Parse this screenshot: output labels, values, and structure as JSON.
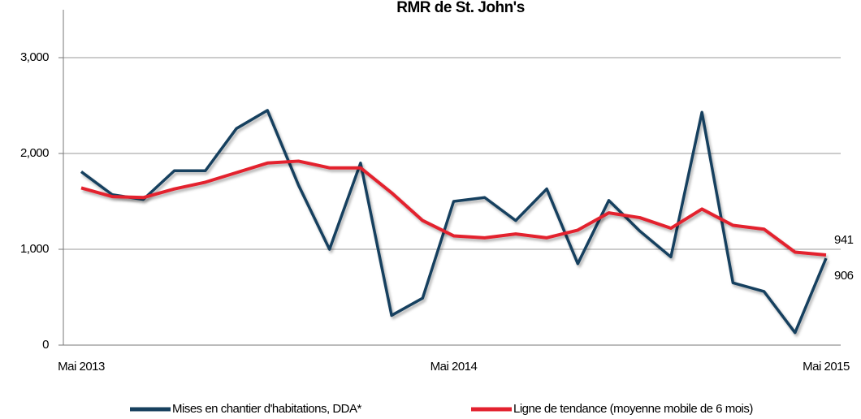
{
  "chart_data": {
    "type": "line",
    "title": "RMR de St. John's",
    "categories": [
      "Mai 2013",
      null,
      null,
      null,
      null,
      null,
      null,
      null,
      null,
      null,
      null,
      null,
      "Mai 2014",
      null,
      null,
      null,
      null,
      null,
      null,
      null,
      null,
      null,
      null,
      null,
      "Mai 2015"
    ],
    "series": [
      {
        "name": "Mises en chantier d'habitations, DDA*",
        "color": "#17405e",
        "values": [
          1810,
          1570,
          1520,
          1820,
          1820,
          2260,
          2450,
          1670,
          1000,
          1900,
          310,
          490,
          1500,
          1540,
          1300,
          1630,
          850,
          1510,
          1190,
          920,
          2430,
          650,
          560,
          130,
          906
        ]
      },
      {
        "name": "Ligne de tendance (moyenne mobile de 6 mois)",
        "color": "#e3212f",
        "values": [
          1640,
          1550,
          1540,
          1630,
          1700,
          1800,
          1900,
          1920,
          1850,
          1850,
          1590,
          1300,
          1140,
          1120,
          1160,
          1120,
          1200,
          1380,
          1330,
          1220,
          1420,
          1250,
          1210,
          970,
          941
        ]
      }
    ],
    "ylim": [
      0,
      3500
    ],
    "yticks": [
      0,
      {
        "value": 1000,
        "label": "1,000"
      },
      {
        "value": 2000,
        "label": "2,000"
      },
      {
        "value": 3000,
        "label": "3,000"
      }
    ],
    "grid": true,
    "legend": "bottom"
  }
}
